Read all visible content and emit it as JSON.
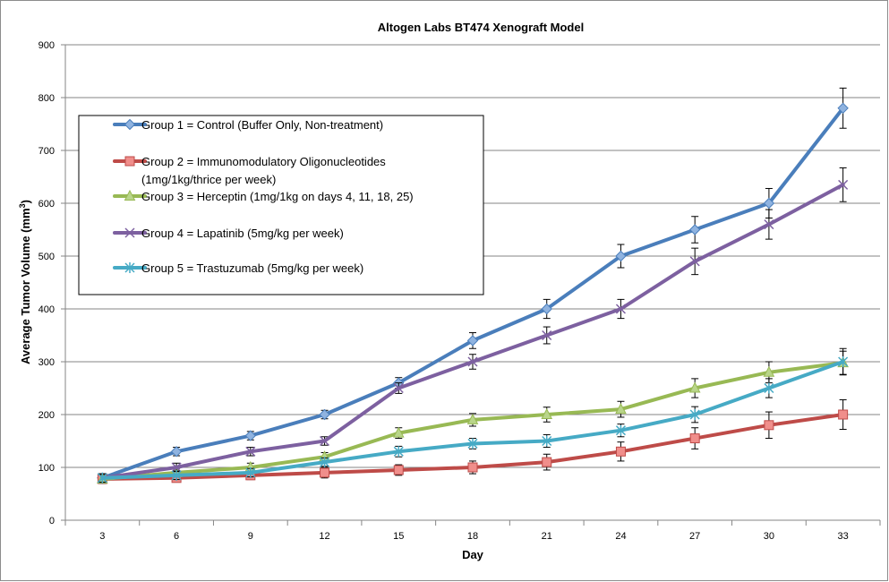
{
  "chart_data": {
    "type": "line",
    "title": "Altogen Labs BT474  Xenograft Model",
    "xlabel": "Day",
    "ylabel": "Average Tumor Volume (mm",
    "ylabel_sup": "3",
    "ylabel_close": ")",
    "x": [
      3,
      6,
      9,
      12,
      15,
      18,
      21,
      24,
      27,
      30,
      33
    ],
    "ylim": [
      0,
      900
    ],
    "yticks": [
      0,
      100,
      200,
      300,
      400,
      500,
      600,
      700,
      800,
      900
    ],
    "grid": "horizontal",
    "legend_position": "top-left (inside plot)",
    "series": [
      {
        "name": "Group 1 = Control (Buffer Only, Non-treatment)",
        "name_lines": [
          "Group 1 = Control (Buffer Only, Non-treatment)"
        ],
        "color": "#4a7ebb",
        "marker": "diamond",
        "values": [
          80,
          130,
          160,
          200,
          260,
          340,
          400,
          500,
          550,
          600,
          780
        ],
        "errors": [
          8,
          8,
          8,
          8,
          10,
          15,
          18,
          22,
          25,
          28,
          38
        ]
      },
      {
        "name": "Group 2 = Immunomodulatory Oligonucleotides (1mg/1kg/thrice per week)",
        "name_lines": [
          "Group 2 = Immunomodulatory Oligonucleotides",
          "(1mg/1kg/thrice per week)"
        ],
        "color": "#be4b48",
        "marker": "square",
        "values": [
          78,
          80,
          85,
          90,
          95,
          100,
          110,
          130,
          155,
          180,
          200
        ],
        "errors": [
          8,
          8,
          8,
          10,
          10,
          12,
          15,
          18,
          20,
          25,
          28
        ]
      },
      {
        "name": "Group 3 = Herceptin (1mg/1kg on days 4, 11, 18, 25)",
        "name_lines": [
          "Group 3 = Herceptin (1mg/1kg on days 4, 11, 18, 25)"
        ],
        "color": "#98b954",
        "marker": "triangle",
        "values": [
          78,
          90,
          100,
          120,
          165,
          190,
          200,
          210,
          250,
          280,
          298
        ],
        "errors": [
          8,
          8,
          8,
          8,
          10,
          12,
          14,
          15,
          18,
          20,
          22
        ]
      },
      {
        "name": "Group 4 = Lapatinib (5mg/kg per week)",
        "name_lines": [
          "Group 4 = Lapatinib (5mg/kg per week)"
        ],
        "color": "#7d60a0",
        "marker": "x",
        "values": [
          80,
          100,
          130,
          150,
          250,
          300,
          350,
          400,
          490,
          560,
          635
        ],
        "errors": [
          8,
          8,
          8,
          8,
          10,
          14,
          16,
          18,
          25,
          28,
          32
        ]
      },
      {
        "name": "Group 5 = Trastuzumab (5mg/kg per week)",
        "name_lines": [
          "Group 5 = Trastuzumab (5mg/kg per week)"
        ],
        "color": "#46aac5",
        "marker": "star",
        "values": [
          80,
          85,
          90,
          110,
          130,
          145,
          150,
          170,
          200,
          250,
          300
        ],
        "errors": [
          8,
          8,
          8,
          8,
          10,
          10,
          12,
          12,
          15,
          18,
          25
        ]
      }
    ]
  }
}
